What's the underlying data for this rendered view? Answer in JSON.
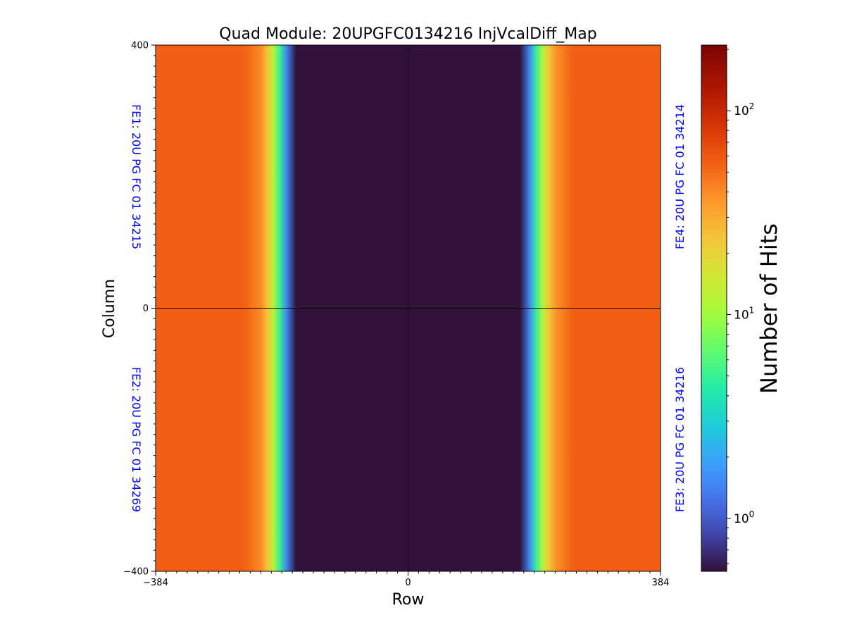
{
  "chart_data": {
    "type": "heatmap",
    "title": "Quad Module: 20UPGFC0134216 InjVcalDiff_Map",
    "xlabel": "Row",
    "ylabel": "Column",
    "xlim": [
      -384,
      384
    ],
    "ylim": [
      -400,
      400
    ],
    "xticks": [
      {
        "value": -384,
        "label": "−384"
      },
      {
        "value": 0,
        "label": "0"
      },
      {
        "value": 384,
        "label": "384"
      }
    ],
    "yticks": [
      {
        "value": 400,
        "label": "400"
      },
      {
        "value": 0,
        "label": "0"
      },
      {
        "value": -400,
        "label": "−400"
      }
    ],
    "divider_lines": {
      "x": 0,
      "y": 0
    },
    "colorbar": {
      "label": "Number of Hits",
      "scale": "log",
      "range": [
        0.55,
        210
      ],
      "ticks": [
        {
          "value": 1,
          "base": "10",
          "exp": "0"
        },
        {
          "value": 10,
          "base": "10",
          "exp": "1"
        },
        {
          "value": 100,
          "base": "10",
          "exp": "2"
        }
      ],
      "colormap": "turbo"
    },
    "chip_labels": [
      {
        "text": "FE1: 20U PG FC 01 34215",
        "position": "top-left",
        "color": "#0000ff"
      },
      {
        "text": "FE4: 20U PG FC 01 34214",
        "position": "top-right",
        "color": "#0000ff"
      },
      {
        "text": "FE2: 20U PG FC 01 34269",
        "position": "bottom-left",
        "color": "#0000ff"
      },
      {
        "text": "FE3: 20U PG FC 01 34216",
        "position": "bottom-right",
        "color": "#0000ff"
      }
    ],
    "hit_profile_vs_row": {
      "description": "hits per pixel as a function of row; uniform along column",
      "x": [
        -384,
        -250,
        -224,
        -215,
        -205,
        -195,
        -185,
        -170,
        0,
        170,
        185,
        195,
        205,
        215,
        228,
        250,
        384
      ],
      "values": [
        55,
        55,
        40,
        25,
        12,
        5,
        1.5,
        0.55,
        0.55,
        0.55,
        1.5,
        5,
        12,
        25,
        40,
        55,
        55
      ]
    }
  }
}
